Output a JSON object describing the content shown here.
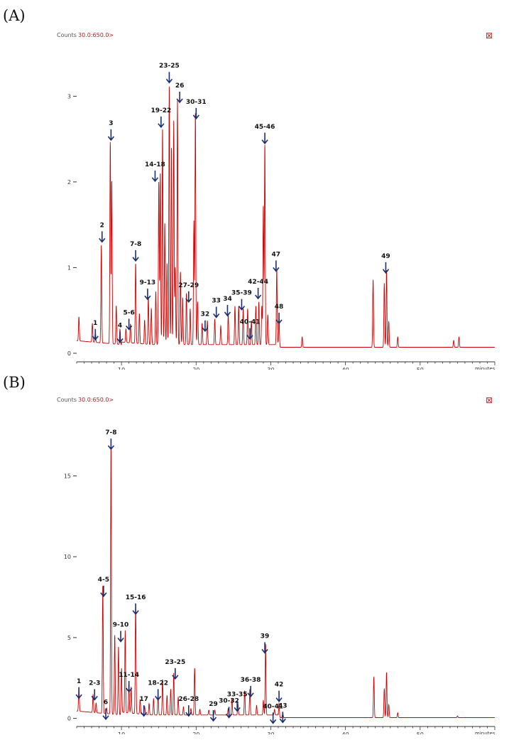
{
  "panels": [
    {
      "label": "(A)",
      "header": "Counts",
      "channel": "30.0:650.0>",
      "xlabel": "minutes",
      "close_glyph": "⊠",
      "peak_labels": [
        {
          "text": "1",
          "x": 6.5,
          "h": 0.3
        },
        {
          "text": "2",
          "x": 7.4,
          "h": 1.44
        },
        {
          "text": "3",
          "x": 8.6,
          "h": 2.63
        },
        {
          "text": "4",
          "x": 9.8,
          "h": 0.27
        },
        {
          "text": "5-6",
          "x": 11.0,
          "h": 0.42
        },
        {
          "text": "7-8",
          "x": 11.9,
          "h": 1.22
        },
        {
          "text": "9-13",
          "x": 13.5,
          "h": 0.77
        },
        {
          "text": "14-18",
          "x": 14.5,
          "h": 2.15
        },
        {
          "text": "19-22",
          "x": 15.3,
          "h": 2.78
        },
        {
          "text": "23-25",
          "x": 16.4,
          "h": 3.3
        },
        {
          "text": "26",
          "x": 17.8,
          "h": 3.07
        },
        {
          "text": "27-29",
          "x": 19.0,
          "h": 0.74
        },
        {
          "text": "30-31",
          "x": 20.0,
          "h": 2.88
        },
        {
          "text": "32",
          "x": 21.2,
          "h": 0.4
        },
        {
          "text": "33",
          "x": 22.7,
          "h": 0.56
        },
        {
          "text": "34",
          "x": 24.2,
          "h": 0.58
        },
        {
          "text": "35-39",
          "x": 26.1,
          "h": 0.65
        },
        {
          "text": "40-41",
          "x": 27.2,
          "h": 0.31
        },
        {
          "text": "42-44",
          "x": 28.3,
          "h": 0.78
        },
        {
          "text": "45-46",
          "x": 29.2,
          "h": 2.59
        },
        {
          "text": "47",
          "x": 30.7,
          "h": 1.1
        },
        {
          "text": "48",
          "x": 31.1,
          "h": 0.49
        },
        {
          "text": "49",
          "x": 45.4,
          "h": 1.08
        }
      ]
    },
    {
      "label": "(B)",
      "header": "Counts",
      "channel": "30.0:650.0>",
      "xlabel": "minutes",
      "close_glyph": "⊠",
      "peak_labels": [
        {
          "text": "1",
          "x": 4.3,
          "h": 2.0
        },
        {
          "text": "2-3",
          "x": 6.4,
          "h": 1.9
        },
        {
          "text": "4-5",
          "x": 7.6,
          "h": 8.3
        },
        {
          "text": "6",
          "x": 7.9,
          "h": 0.7
        },
        {
          "text": "7-8",
          "x": 8.6,
          "h": 17.4
        },
        {
          "text": "9-10",
          "x": 9.9,
          "h": 5.5
        },
        {
          "text": "11-14",
          "x": 11.0,
          "h": 2.4
        },
        {
          "text": "15-16",
          "x": 11.9,
          "h": 7.2
        },
        {
          "text": "17",
          "x": 13.0,
          "h": 0.9
        },
        {
          "text": "18-22",
          "x": 14.9,
          "h": 1.9
        },
        {
          "text": "23-25",
          "x": 17.2,
          "h": 3.2
        },
        {
          "text": "26-28",
          "x": 19.0,
          "h": 0.9
        },
        {
          "text": "29",
          "x": 22.3,
          "h": 0.6
        },
        {
          "text": "30-32",
          "x": 24.4,
          "h": 0.8
        },
        {
          "text": "33-35",
          "x": 25.5,
          "h": 1.2
        },
        {
          "text": "36-38",
          "x": 27.3,
          "h": 2.1
        },
        {
          "text": "39",
          "x": 29.2,
          "h": 4.8
        },
        {
          "text": "40-41",
          "x": 30.3,
          "h": 0.45
        },
        {
          "text": "42",
          "x": 31.1,
          "h": 1.8
        },
        {
          "text": "43",
          "x": 31.6,
          "h": 0.5
        }
      ]
    }
  ],
  "chart_data": [
    {
      "type": "line",
      "title": "",
      "xlabel": "minutes",
      "ylabel": "Counts",
      "xlim": [
        4,
        60
      ],
      "ylim": [
        -0.1,
        3.75
      ],
      "xticks": [
        10,
        20,
        30,
        40,
        50
      ],
      "yticks": [
        0,
        1,
        2,
        3
      ],
      "grid": false,
      "line_color": "#cc0000",
      "baseline": 0.07,
      "peaks": [
        {
          "x": 4.3,
          "y": 0.28
        },
        {
          "x": 6.1,
          "y": 0.22
        },
        {
          "x": 6.5,
          "y": 0.12
        },
        {
          "x": 7.3,
          "y": 1.14
        },
        {
          "x": 8.5,
          "y": 2.35
        },
        {
          "x": 8.7,
          "y": 1.9
        },
        {
          "x": 9.3,
          "y": 0.45
        },
        {
          "x": 9.8,
          "y": 0.18
        },
        {
          "x": 10.6,
          "y": 0.16
        },
        {
          "x": 11.2,
          "y": 0.22
        },
        {
          "x": 11.9,
          "y": 0.93
        },
        {
          "x": 12.4,
          "y": 0.35
        },
        {
          "x": 13.1,
          "y": 0.28
        },
        {
          "x": 13.6,
          "y": 0.55
        },
        {
          "x": 14.0,
          "y": 0.42
        },
        {
          "x": 14.6,
          "y": 0.62
        },
        {
          "x": 15.0,
          "y": 1.9
        },
        {
          "x": 15.2,
          "y": 2.0
        },
        {
          "x": 15.5,
          "y": 2.52
        },
        {
          "x": 15.8,
          "y": 1.42
        },
        {
          "x": 16.1,
          "y": 0.95
        },
        {
          "x": 16.4,
          "y": 3.02
        },
        {
          "x": 16.7,
          "y": 2.3
        },
        {
          "x": 17.0,
          "y": 2.62
        },
        {
          "x": 17.2,
          "y": 0.9
        },
        {
          "x": 17.5,
          "y": 2.85
        },
        {
          "x": 17.9,
          "y": 0.85
        },
        {
          "x": 18.2,
          "y": 0.55
        },
        {
          "x": 18.7,
          "y": 0.6
        },
        {
          "x": 19.2,
          "y": 0.42
        },
        {
          "x": 19.7,
          "y": 1.45
        },
        {
          "x": 19.9,
          "y": 2.7
        },
        {
          "x": 20.2,
          "y": 0.5
        },
        {
          "x": 20.8,
          "y": 0.25
        },
        {
          "x": 21.5,
          "y": 0.28
        },
        {
          "x": 22.5,
          "y": 0.3
        },
        {
          "x": 23.3,
          "y": 0.22
        },
        {
          "x": 24.3,
          "y": 0.35
        },
        {
          "x": 25.2,
          "y": 0.45
        },
        {
          "x": 25.7,
          "y": 0.45
        },
        {
          "x": 26.3,
          "y": 0.42
        },
        {
          "x": 26.9,
          "y": 0.42
        },
        {
          "x": 27.4,
          "y": 0.28
        },
        {
          "x": 28.0,
          "y": 0.45
        },
        {
          "x": 28.4,
          "y": 0.5
        },
        {
          "x": 28.8,
          "y": 0.45
        },
        {
          "x": 29.0,
          "y": 1.62
        },
        {
          "x": 29.2,
          "y": 2.33
        },
        {
          "x": 29.6,
          "y": 0.35
        },
        {
          "x": 30.8,
          "y": 0.88
        },
        {
          "x": 31.1,
          "y": 0.35
        },
        {
          "x": 34.2,
          "y": 0.12
        },
        {
          "x": 43.7,
          "y": 0.79
        },
        {
          "x": 45.2,
          "y": 0.75
        },
        {
          "x": 45.5,
          "y": 0.9
        },
        {
          "x": 45.8,
          "y": 0.3
        },
        {
          "x": 47.0,
          "y": 0.12
        },
        {
          "x": 54.5,
          "y": 0.08
        },
        {
          "x": 55.2,
          "y": 0.12
        }
      ]
    },
    {
      "type": "line",
      "title": "",
      "xlabel": "minutes",
      "ylabel": "Counts",
      "xlim": [
        4,
        60
      ],
      "ylim": [
        -0.5,
        19.9
      ],
      "xticks": [
        10,
        20,
        30,
        40,
        50
      ],
      "yticks": [
        0,
        5,
        10,
        15
      ],
      "grid": false,
      "line_color": "#cc0000",
      "baseline": 0.05,
      "peaks": [
        {
          "x": 4.3,
          "y": 1.5
        },
        {
          "x": 6.2,
          "y": 1.1
        },
        {
          "x": 6.6,
          "y": 0.6
        },
        {
          "x": 7.5,
          "y": 7.9
        },
        {
          "x": 8.0,
          "y": 0.35
        },
        {
          "x": 8.6,
          "y": 16.7
        },
        {
          "x": 9.1,
          "y": 4.9
        },
        {
          "x": 9.6,
          "y": 4.2
        },
        {
          "x": 10.0,
          "y": 2.8
        },
        {
          "x": 10.5,
          "y": 5.1
        },
        {
          "x": 11.0,
          "y": 1.9
        },
        {
          "x": 11.3,
          "y": 1.6
        },
        {
          "x": 11.9,
          "y": 6.8
        },
        {
          "x": 12.5,
          "y": 0.9
        },
        {
          "x": 13.1,
          "y": 0.5
        },
        {
          "x": 13.7,
          "y": 0.7
        },
        {
          "x": 14.3,
          "y": 1.0
        },
        {
          "x": 14.9,
          "y": 1.4
        },
        {
          "x": 15.5,
          "y": 2.2
        },
        {
          "x": 16.1,
          "y": 1.2
        },
        {
          "x": 16.6,
          "y": 1.6
        },
        {
          "x": 17.0,
          "y": 2.6
        },
        {
          "x": 17.6,
          "y": 1.1
        },
        {
          "x": 18.3,
          "y": 0.5
        },
        {
          "x": 19.3,
          "y": 0.4
        },
        {
          "x": 19.8,
          "y": 2.9
        },
        {
          "x": 20.5,
          "y": 0.35
        },
        {
          "x": 21.7,
          "y": 0.3
        },
        {
          "x": 22.5,
          "y": 0.3
        },
        {
          "x": 24.3,
          "y": 0.4
        },
        {
          "x": 24.8,
          "y": 1.0
        },
        {
          "x": 25.6,
          "y": 0.7
        },
        {
          "x": 26.5,
          "y": 1.5
        },
        {
          "x": 27.2,
          "y": 1.6
        },
        {
          "x": 28.1,
          "y": 0.6
        },
        {
          "x": 29.0,
          "y": 0.9
        },
        {
          "x": 29.3,
          "y": 4.4
        },
        {
          "x": 30.5,
          "y": 0.35
        },
        {
          "x": 31.1,
          "y": 0.9
        },
        {
          "x": 31.6,
          "y": 0.3
        },
        {
          "x": 43.8,
          "y": 2.5
        },
        {
          "x": 45.2,
          "y": 1.8
        },
        {
          "x": 45.5,
          "y": 2.8
        },
        {
          "x": 45.8,
          "y": 0.8
        },
        {
          "x": 47.0,
          "y": 0.3
        },
        {
          "x": 55.0,
          "y": 0.1
        }
      ]
    }
  ]
}
